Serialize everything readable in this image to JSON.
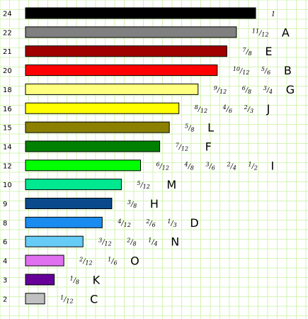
{
  "chart_data": {
    "type": "bar",
    "orientation": "horizontal",
    "max_value": 24,
    "grid": true,
    "grid_color": "#c8f0a0",
    "rows": [
      {
        "value": 24,
        "color": "#000000",
        "fractions": [
          "1"
        ],
        "letter": ""
      },
      {
        "value": 22,
        "color": "#808080",
        "fractions": [
          "11/12"
        ],
        "letter": "A"
      },
      {
        "value": 21,
        "color": "#a00000",
        "fractions": [
          "7/8"
        ],
        "letter": "E"
      },
      {
        "value": 20,
        "color": "#ff0000",
        "fractions": [
          "10/12",
          "5/6"
        ],
        "letter": "B"
      },
      {
        "value": 18,
        "color": "#ffff80",
        "fractions": [
          "9/12",
          "6/8",
          "3/4"
        ],
        "letter": "G"
      },
      {
        "value": 16,
        "color": "#ffff00",
        "fractions": [
          "8/12",
          "4/6",
          "2/3"
        ],
        "letter": "J"
      },
      {
        "value": 15,
        "color": "#8b8000",
        "fractions": [
          "5/8"
        ],
        "letter": "L"
      },
      {
        "value": 14,
        "color": "#008000",
        "fractions": [
          "7/12"
        ],
        "letter": "F"
      },
      {
        "value": 12,
        "color": "#00ff00",
        "fractions": [
          "6/12",
          "4/8",
          "3/6",
          "2/4",
          "1/2"
        ],
        "letter": "I"
      },
      {
        "value": 10,
        "color": "#00e890",
        "fractions": [
          "5/12"
        ],
        "letter": "M"
      },
      {
        "value": 9,
        "color": "#0a4a8c",
        "fractions": [
          "3/8"
        ],
        "letter": "H"
      },
      {
        "value": 8,
        "color": "#1a8cf0",
        "fractions": [
          "4/12",
          "2/6",
          "1/3"
        ],
        "letter": "D"
      },
      {
        "value": 6,
        "color": "#66ccf5",
        "fractions": [
          "3/12",
          "2/8",
          "1/4"
        ],
        "letter": "N"
      },
      {
        "value": 4,
        "color": "#e070f0",
        "fractions": [
          "2/12",
          "1/6"
        ],
        "letter": "O"
      },
      {
        "value": 3,
        "color": "#660099",
        "fractions": [
          "1/8"
        ],
        "letter": "K"
      },
      {
        "value": 2,
        "color": "#c0c0c0",
        "fractions": [
          "1/12"
        ],
        "letter": "C"
      }
    ]
  }
}
